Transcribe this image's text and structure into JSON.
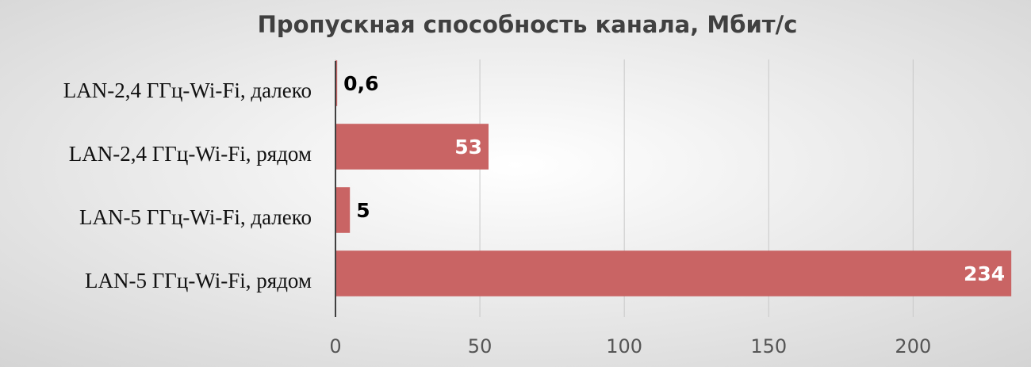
{
  "chart_data": {
    "type": "barh",
    "title": "Пропускная способность канала, Мбит/с",
    "categories": [
      "LAN-2,4 ГГц-Wi-Fi, далеко",
      "LAN-2,4 ГГц-Wi-Fi, рядом",
      "LAN-5 ГГц-Wi-Fi, далеко",
      "LAN-5 ГГц-Wi-Fi, рядом"
    ],
    "values": [
      0.6,
      53,
      5,
      234
    ],
    "value_labels": [
      "0,6",
      "53",
      "5",
      "234"
    ],
    "color": "#c96464",
    "xlim": [
      0,
      240
    ],
    "xticks": [
      0,
      50,
      100,
      150,
      200
    ],
    "grid": true
  }
}
